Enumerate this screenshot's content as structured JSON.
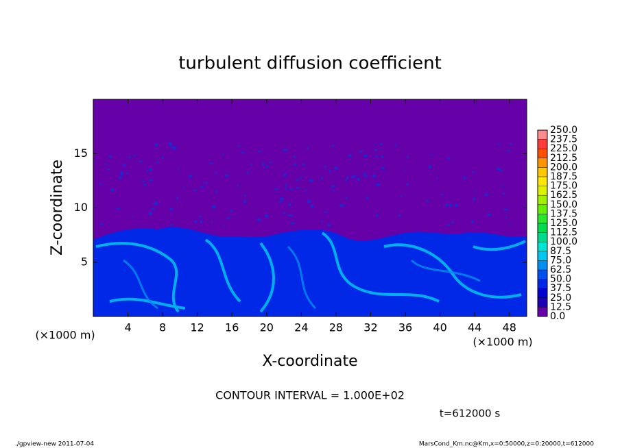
{
  "chart_data": {
    "type": "contour",
    "title": "turbulent diffusion coefficient",
    "xlabel": "X-coordinate",
    "ylabel": "Z-coordinate",
    "x_unit": "(×1000 m)",
    "y_unit": "(×1000 m)",
    "xlim": [
      0,
      50
    ],
    "xticks": [
      4,
      8,
      12,
      16,
      20,
      24,
      28,
      32,
      36,
      40,
      44,
      48
    ],
    "ylim": [
      0,
      20
    ],
    "yticks": [
      5,
      10,
      15
    ],
    "colorbar": {
      "levels": [
        {
          "value": 0,
          "label": "0.0"
        },
        12.5,
        {
          "value": 25,
          "label": "25.0"
        },
        37.5,
        {
          "value": 50,
          "label": "50.0"
        },
        62.5,
        {
          "value": 75,
          "label": "75.0"
        },
        87.5,
        {
          "value": 100,
          "label": "100.0"
        },
        112.5,
        {
          "value": 125,
          "label": "125.0"
        },
        137.5,
        {
          "value": 150,
          "label": "150.0"
        },
        162.5,
        {
          "value": 175,
          "label": "175.0"
        },
        187.5,
        {
          "value": 200,
          "label": "200.0"
        },
        212.5,
        {
          "value": 225,
          "label": "225.0"
        },
        237.5,
        {
          "value": 250,
          "label": "250.0"
        }
      ],
      "colors": [
        "#6600a8",
        "#1e00b4",
        "#0000d2",
        "#0028e6",
        "#0050f0",
        "#0090f0",
        "#00c8f0",
        "#00e6d2",
        "#00dc8c",
        "#00dc50",
        "#28e628",
        "#64f000",
        "#a0f000",
        "#dcf000",
        "#ffe600",
        "#ffc800",
        "#ff9600",
        "#ff5000",
        "#ff3c3c",
        "#ff8c8c"
      ]
    },
    "annotations": {
      "contour_interval": "CONTOUR INTERVAL = 1.000E+02",
      "time": "t=612000 s",
      "footer_left": "./gpview-new  2011-07-04",
      "footer_right": "MarsCond_Km.nc@Km,x=0:50000,z=0:20000,t=612000"
    }
  }
}
